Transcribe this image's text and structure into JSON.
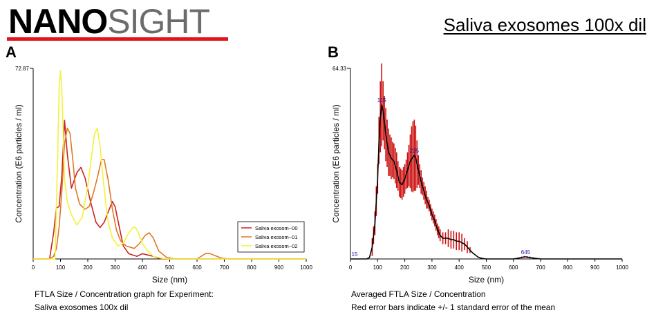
{
  "logo": {
    "bold": "NANO",
    "light": "SIGHT"
  },
  "report_title": "Saliva exosomes 100x dil",
  "panel_a": {
    "letter": "A",
    "caption_line1": "FTLA Size / Concentration graph for Experiment:",
    "caption_line2": "Saliva exosomes 100x dil"
  },
  "panel_b": {
    "letter": "B",
    "caption_line1": "Averaged FTLA Size / Concentration",
    "caption_line2": "Red error bars indicate +/- 1 standard error of the mean"
  },
  "colors": {
    "series_00": "#cc2222",
    "series_01": "#e07820",
    "series_02": "#f2f23a",
    "mean_line": "#000000",
    "error_bars": "#cc1111",
    "peak_labels": "#1a1aa0",
    "logo_bar": "#e0161d"
  },
  "chart_data": [
    {
      "type": "line",
      "panel": "A",
      "xlabel": "Size (nm)",
      "ylabel": "Concentration (E6 particles / ml)",
      "xlim": [
        0,
        1000
      ],
      "ylim": [
        0,
        72.87
      ],
      "y_max_label": "72.87",
      "x_ticks": [
        0,
        100,
        200,
        300,
        400,
        500,
        600,
        700,
        800,
        900,
        1000
      ],
      "x_tick_labels": [
        "0",
        "100",
        "200",
        "300",
        "400",
        "500",
        "600",
        "700",
        "800",
        "900",
        "1000"
      ],
      "legend": [
        "Saliva exosom~00",
        "Saliva exosom~01",
        "Saliva exosom~02"
      ],
      "legend_position": "bottom-right",
      "series": [
        {
          "name": "Saliva exosom~00",
          "x": [
            0,
            60,
            75,
            85,
            95,
            105,
            115,
            125,
            140,
            160,
            175,
            190,
            210,
            230,
            245,
            260,
            275,
            290,
            300,
            310,
            330,
            350,
            380,
            400,
            420,
            440,
            460,
            480,
            500,
            1000
          ],
          "y": [
            0,
            0,
            10,
            19.5,
            20,
            32,
            53,
            40,
            27,
            33,
            35,
            31,
            22,
            14,
            12,
            14,
            18,
            22,
            20,
            15,
            5,
            2,
            1,
            2,
            1.5,
            1,
            0.3,
            0,
            0,
            0
          ]
        },
        {
          "name": "Saliva exosom~01",
          "x": [
            0,
            60,
            75,
            85,
            95,
            105,
            115,
            125,
            135,
            145,
            155,
            170,
            190,
            205,
            220,
            235,
            250,
            260,
            275,
            290,
            305,
            320,
            340,
            370,
            390,
            410,
            425,
            440,
            460,
            490,
            520,
            560,
            600,
            630,
            645,
            660,
            690,
            720,
            1000
          ],
          "y": [
            0,
            0,
            1,
            4,
            12,
            26,
            44,
            50,
            48,
            38,
            27,
            21,
            19,
            20,
            25,
            31,
            38,
            38,
            30,
            19,
            11,
            7,
            5,
            4,
            6,
            9,
            10,
            8,
            3,
            0.5,
            0,
            0,
            0,
            2,
            2.2,
            1.5,
            0.3,
            0,
            0
          ]
        },
        {
          "name": "Saliva exosom~02",
          "x": [
            0,
            80,
            90,
            95,
            100,
            105,
            110,
            115,
            125,
            140,
            160,
            180,
            200,
            215,
            225,
            235,
            245,
            255,
            265,
            275,
            290,
            310,
            330,
            350,
            365,
            375,
            385,
            400,
            420,
            440,
            470,
            500,
            1000
          ],
          "y": [
            0,
            0,
            40,
            65,
            72,
            65,
            48,
            30,
            22,
            17,
            13,
            16,
            28,
            40,
            48,
            50,
            43,
            32,
            22,
            14,
            8,
            5,
            6,
            10,
            12,
            12,
            10,
            6,
            3,
            1,
            0.3,
            0,
            0
          ]
        }
      ]
    },
    {
      "type": "line",
      "panel": "B",
      "xlabel": "Size (nm)",
      "ylabel": "Concentration (E6 particles / ml)",
      "xlim": [
        0,
        1000
      ],
      "ylim": [
        0,
        64.33
      ],
      "y_max_label": "64.33",
      "x_ticks": [
        0,
        100,
        200,
        300,
        400,
        500,
        600,
        700,
        800,
        900,
        1000
      ],
      "x_tick_labels": [
        "0",
        "100",
        "200",
        "300",
        "400",
        "500",
        "600",
        "700",
        "800",
        "900",
        "1000"
      ],
      "series": [
        {
          "name": "Mean",
          "x": [
            0,
            60,
            70,
            80,
            90,
            100,
            105,
            110,
            115,
            120,
            130,
            140,
            150,
            160,
            170,
            180,
            190,
            200,
            210,
            220,
            230,
            235,
            240,
            250,
            260,
            270,
            280,
            290,
            300,
            310,
            320,
            330,
            340,
            350,
            360,
            370,
            380,
            390,
            400,
            410,
            420,
            430,
            440,
            450,
            460,
            470,
            480,
            490,
            500,
            600,
            620,
            640,
            645,
            660,
            680,
            700,
            1000
          ],
          "y": [
            0,
            0,
            0.5,
            4,
            12,
            27,
            40,
            48,
            52,
            50,
            42,
            36,
            34,
            33,
            30,
            26,
            25,
            27,
            30,
            33,
            34.5,
            35,
            34,
            30,
            26,
            23,
            20,
            18,
            15,
            13,
            10,
            8,
            7,
            7,
            7,
            6.5,
            6.5,
            6,
            6,
            5.5,
            5,
            4,
            3,
            2,
            1.3,
            0.6,
            0.3,
            0.1,
            0,
            0,
            0.3,
            0.7,
            0.7,
            0.5,
            0.2,
            0,
            0
          ]
        },
        {
          "name": "Error bars (+/- 1 SE)",
          "x": [
            80,
            85,
            90,
            95,
            100,
            105,
            110,
            115,
            120,
            125,
            130,
            135,
            140,
            145,
            150,
            155,
            160,
            165,
            170,
            175,
            180,
            185,
            190,
            195,
            200,
            205,
            210,
            215,
            220,
            225,
            230,
            235,
            240,
            245,
            250,
            255,
            260,
            265,
            270,
            275,
            280,
            285,
            290,
            295,
            300,
            305,
            310,
            315,
            320,
            325,
            330,
            340,
            350,
            360,
            370,
            380,
            390,
            400,
            410,
            420,
            430,
            440,
            630,
            640,
            650,
            660
          ],
          "err": [
            3,
            3,
            4,
            5,
            5,
            8,
            12,
            14,
            10,
            9,
            9,
            8,
            8,
            7,
            7,
            6,
            6,
            6,
            6,
            5,
            5,
            5,
            5,
            5,
            5,
            5,
            6,
            7,
            9,
            11,
            12,
            12,
            11,
            8,
            5,
            4,
            4,
            3,
            3,
            3,
            3,
            2,
            2,
            2,
            2,
            2,
            2,
            2,
            2,
            2,
            2,
            2,
            2,
            3,
            3,
            3,
            3,
            3,
            3,
            2,
            2,
            1,
            0.3,
            0.3,
            0.3,
            0.3
          ]
        }
      ],
      "peak_labels": [
        {
          "x": 15,
          "y": 0,
          "text": "15"
        },
        {
          "x": 115,
          "y": 52,
          "text": "115"
        },
        {
          "x": 235,
          "y": 35,
          "text": "235"
        },
        {
          "x": 645,
          "y": 0.7,
          "text": "645"
        }
      ]
    }
  ]
}
